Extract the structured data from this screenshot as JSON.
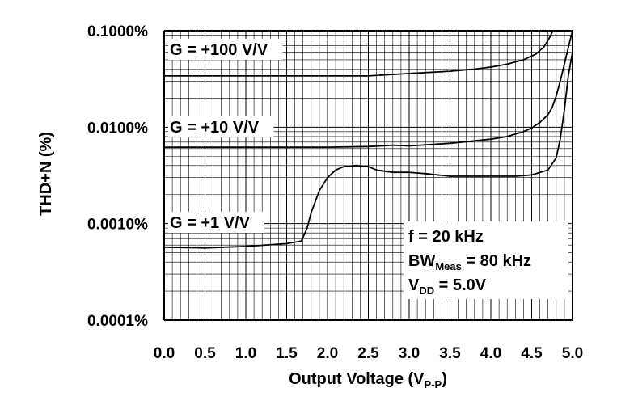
{
  "chart_data": {
    "type": "line",
    "title": "",
    "xlabel": "Output Voltage (VP-P)",
    "xlabel_main": "Output Voltage (V",
    "xlabel_sub": "P-P",
    "xlabel_close": ")",
    "ylabel": "THD+N (%)",
    "xlim": [
      0.0,
      5.0
    ],
    "ylim": [
      0.0001,
      0.1
    ],
    "yscale": "log",
    "grid": true,
    "x_ticks": [
      "0.0",
      "0.5",
      "1.0",
      "1.5",
      "2.0",
      "2.5",
      "3.0",
      "3.5",
      "4.0",
      "4.5",
      "5.0"
    ],
    "y_ticks": [
      "0.0001%",
      "0.0010%",
      "0.0100%",
      "0.1000%"
    ],
    "y_tick_values": [
      0.0001,
      0.001,
      0.01,
      0.1
    ],
    "series": [
      {
        "name": "G = +100 V/V",
        "x": [
          0.0,
          0.5,
          1.0,
          1.5,
          2.0,
          2.5,
          3.0,
          3.5,
          3.8,
          4.0,
          4.2,
          4.4,
          4.55,
          4.65,
          4.72,
          4.76
        ],
        "y": [
          0.034,
          0.034,
          0.034,
          0.034,
          0.034,
          0.034,
          0.036,
          0.038,
          0.04,
          0.042,
          0.045,
          0.05,
          0.057,
          0.068,
          0.085,
          0.1
        ]
      },
      {
        "name": "G = +10 V/V",
        "x": [
          0.0,
          0.5,
          1.0,
          1.5,
          2.0,
          2.5,
          2.8,
          3.0,
          3.5,
          4.0,
          4.2,
          4.4,
          4.5,
          4.6,
          4.7,
          4.75,
          4.8,
          4.85,
          4.9,
          4.95,
          5.0
        ],
        "y": [
          0.0062,
          0.0062,
          0.0062,
          0.0062,
          0.0062,
          0.0063,
          0.0065,
          0.0064,
          0.0068,
          0.0075,
          0.008,
          0.009,
          0.0098,
          0.0112,
          0.0135,
          0.016,
          0.021,
          0.03,
          0.045,
          0.068,
          0.1
        ]
      },
      {
        "name": "G = +1 V/V",
        "x": [
          0.0,
          0.5,
          1.0,
          1.5,
          1.68,
          1.75,
          1.8,
          1.9,
          2.0,
          2.1,
          2.2,
          2.35,
          2.5,
          2.6,
          2.8,
          3.0,
          3.2,
          3.5,
          4.0,
          4.3,
          4.5,
          4.7,
          4.8,
          4.85,
          4.9,
          4.95,
          5.0
        ],
        "y": [
          0.00057,
          0.00056,
          0.00058,
          0.00062,
          0.00066,
          0.0009,
          0.0013,
          0.0022,
          0.003,
          0.0036,
          0.0039,
          0.004,
          0.0039,
          0.0036,
          0.0034,
          0.0034,
          0.0033,
          0.0031,
          0.0031,
          0.0031,
          0.0032,
          0.0036,
          0.0048,
          0.0075,
          0.015,
          0.035,
          0.06
        ]
      }
    ],
    "labels": [
      {
        "text": "G = +100 V/V",
        "series": 0
      },
      {
        "text": "G = +10 V/V",
        "series": 1
      },
      {
        "text": "G = +1 V/V",
        "series": 2
      }
    ],
    "conditions": {
      "line1": "f = 20 kHz",
      "line2_main": "BW",
      "line2_sub": "Meas",
      "line2_rest": " = 80 kHz",
      "line3_main": "V",
      "line3_sub": "DD",
      "line3_rest": " = 5.0V"
    },
    "colors": {
      "line": "#000000",
      "grid": "#000000",
      "background": "#ffffff"
    }
  }
}
